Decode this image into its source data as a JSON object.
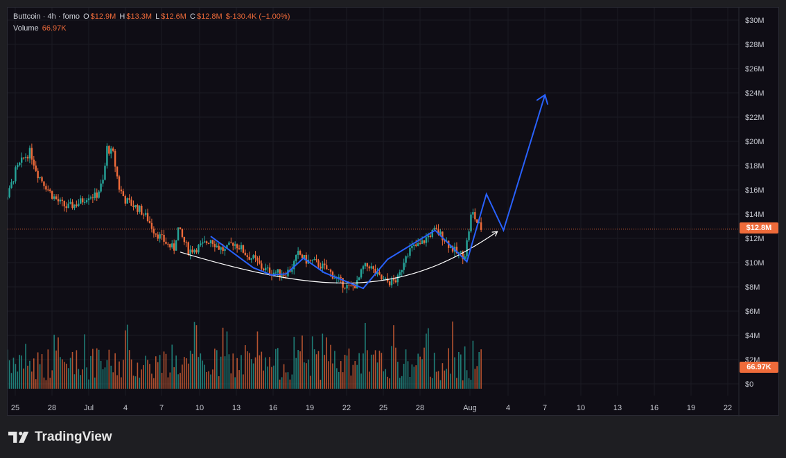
{
  "legend": {
    "symbol": "Buttcoin · 4h · fomo",
    "open_label": "O",
    "open_value": "$12.9M",
    "high_label": "H",
    "high_value": "$13.3M",
    "low_label": "L",
    "low_value": "$12.6M",
    "close_label": "C",
    "close_value": "$12.8M",
    "change": "$-130.4K (−1.00%)",
    "volume_label": "Volume",
    "volume_value": "66.97K"
  },
  "price_tag": "$12.8M",
  "volume_tag": "66.97K",
  "brand": "TradingView",
  "colors": {
    "up": "#26a69a",
    "down": "#ef6b3a",
    "drawing": "#2962ff",
    "curve": "#ffffff",
    "background": "#0f0d15"
  },
  "chart_data": {
    "type": "candlestick",
    "interval": "4h",
    "y_axis": {
      "min": 0,
      "max": 30000000,
      "ticks": [
        "$30M",
        "$28M",
        "$26M",
        "$24M",
        "$22M",
        "$20M",
        "$18M",
        "$16M",
        "$14M",
        "$12M",
        "$10M",
        "$8M",
        "$6M",
        "$4M",
        "$2M",
        "$0"
      ]
    },
    "x_axis": {
      "ticks": [
        "25",
        "28",
        "Jul",
        "4",
        "7",
        "10",
        "13",
        "16",
        "19",
        "22",
        "25",
        "28",
        "Aug",
        "4",
        "7",
        "10",
        "13",
        "16",
        "19",
        "22"
      ]
    },
    "last_price": 12800000,
    "price_path": [
      {
        "t": -8.0,
        "p": 16.4
      },
      {
        "t": -7.3,
        "p": 15.1
      },
      {
        "t": -6.6,
        "p": 15.6
      },
      {
        "t": -6.0,
        "p": 17.6
      },
      {
        "t": -5.3,
        "p": 18.7
      },
      {
        "t": -4.8,
        "p": 19.2
      },
      {
        "t": -4.2,
        "p": 17.4
      },
      {
        "t": -3.6,
        "p": 16.5
      },
      {
        "t": -3.0,
        "p": 15.6
      },
      {
        "t": -2.4,
        "p": 15.0
      },
      {
        "t": -1.8,
        "p": 14.6
      },
      {
        "t": -1.2,
        "p": 14.8
      },
      {
        "t": -0.6,
        "p": 15.1
      },
      {
        "t": 0.0,
        "p": 15.6
      },
      {
        "t": 0.6,
        "p": 15.5
      },
      {
        "t": 1.2,
        "p": 16.8
      },
      {
        "t": 1.5,
        "p": 19.5
      },
      {
        "t": 2.0,
        "p": 19.0
      },
      {
        "t": 2.5,
        "p": 16.2
      },
      {
        "t": 3.0,
        "p": 15.2
      },
      {
        "t": 3.6,
        "p": 14.8
      },
      {
        "t": 4.2,
        "p": 14.4
      },
      {
        "t": 4.8,
        "p": 13.7
      },
      {
        "t": 5.4,
        "p": 12.6
      },
      {
        "t": 6.0,
        "p": 12.0
      },
      {
        "t": 6.6,
        "p": 11.4
      },
      {
        "t": 7.0,
        "p": 11.2
      },
      {
        "t": 7.3,
        "p": 12.9
      },
      {
        "t": 7.7,
        "p": 12.0
      },
      {
        "t": 8.2,
        "p": 11.0
      },
      {
        "t": 8.8,
        "p": 11.2
      },
      {
        "t": 9.4,
        "p": 11.5
      },
      {
        "t": 10.0,
        "p": 12.0
      },
      {
        "t": 10.6,
        "p": 11.3
      },
      {
        "t": 11.2,
        "p": 11.0
      },
      {
        "t": 11.8,
        "p": 11.7
      },
      {
        "t": 12.4,
        "p": 11.3
      },
      {
        "t": 13.0,
        "p": 10.6
      },
      {
        "t": 13.6,
        "p": 10.3
      },
      {
        "t": 14.2,
        "p": 9.6
      },
      {
        "t": 14.8,
        "p": 9.3
      },
      {
        "t": 15.4,
        "p": 9.2
      },
      {
        "t": 16.0,
        "p": 9.1
      },
      {
        "t": 16.6,
        "p": 9.5
      },
      {
        "t": 17.2,
        "p": 10.8
      },
      {
        "t": 17.8,
        "p": 10.2
      },
      {
        "t": 18.4,
        "p": 10.1
      },
      {
        "t": 19.0,
        "p": 9.8
      },
      {
        "t": 19.6,
        "p": 9.4
      },
      {
        "t": 20.2,
        "p": 8.8
      },
      {
        "t": 20.8,
        "p": 8.3
      },
      {
        "t": 21.4,
        "p": 7.9
      },
      {
        "t": 22.0,
        "p": 8.3
      },
      {
        "t": 22.5,
        "p": 9.6
      },
      {
        "t": 23.0,
        "p": 9.8
      },
      {
        "t": 23.6,
        "p": 9.0
      },
      {
        "t": 24.2,
        "p": 8.5
      },
      {
        "t": 24.8,
        "p": 8.4
      },
      {
        "t": 25.4,
        "p": 8.7
      },
      {
        "t": 26.0,
        "p": 10.8
      },
      {
        "t": 26.6,
        "p": 11.3
      },
      {
        "t": 27.2,
        "p": 11.5
      },
      {
        "t": 27.8,
        "p": 12.2
      },
      {
        "t": 28.4,
        "p": 12.7
      },
      {
        "t": 29.0,
        "p": 12.2
      },
      {
        "t": 29.6,
        "p": 11.4
      },
      {
        "t": 30.2,
        "p": 10.8
      },
      {
        "t": 30.8,
        "p": 10.6
      },
      {
        "t": 31.1,
        "p": 12.3
      },
      {
        "t": 31.4,
        "p": 14.3
      },
      {
        "t": 31.8,
        "p": 13.4
      },
      {
        "t": 32.2,
        "p": 12.8
      }
    ]
  },
  "drawings": {
    "projection_path": [
      {
        "t": 10.0,
        "p": 12.2
      },
      {
        "t": 13.5,
        "p": 9.6
      },
      {
        "t": 15.0,
        "p": 9.0
      },
      {
        "t": 16.2,
        "p": 9.1
      },
      {
        "t": 17.6,
        "p": 10.4
      },
      {
        "t": 19.3,
        "p": 9.2
      },
      {
        "t": 22.5,
        "p": 7.9
      },
      {
        "t": 24.5,
        "p": 10.3
      },
      {
        "t": 28.4,
        "p": 12.7
      },
      {
        "t": 31.0,
        "p": 10.1
      },
      {
        "t": 32.6,
        "p": 15.7
      },
      {
        "t": 34.0,
        "p": 12.7
      },
      {
        "t": 37.4,
        "p": 23.9
      }
    ],
    "cup_curve": [
      {
        "t": 7.5,
        "p": 10.9
      },
      {
        "t": 20.0,
        "p": 7.1
      },
      {
        "t": 26.0,
        "p": 7.4
      },
      {
        "t": 33.5,
        "p": 12.6
      }
    ]
  }
}
